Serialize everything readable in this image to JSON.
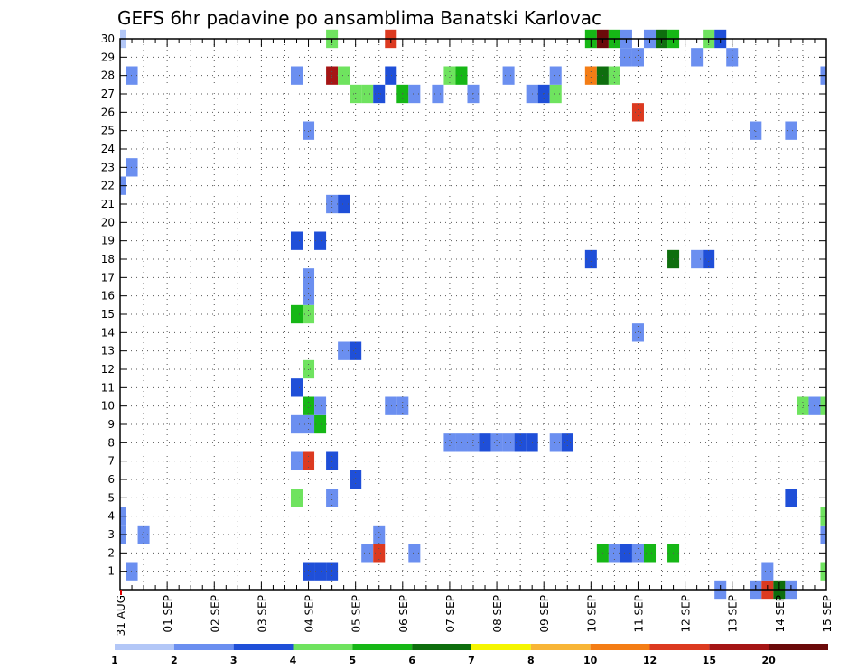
{
  "chart_data": {
    "type": "heatmap",
    "title": "GEFS 6hr padavine po ansamblima Banatski Karlovac",
    "xlabel": "",
    "ylabel": "",
    "x_tick_labels": [
      "31 AUG",
      "01 SEP",
      "02 SEP",
      "03 SEP",
      "04 SEP",
      "05 SEP",
      "06 SEP",
      "07 SEP",
      "08 SEP",
      "09 SEP",
      "10 SEP",
      "11 SEP",
      "12 SEP",
      "13 SEP",
      "14 SEP",
      "15 SEP"
    ],
    "x_range_steps": [
      0,
      60
    ],
    "steps_per_day": 4,
    "y_tick_labels": [
      "1",
      "2",
      "3",
      "4",
      "5",
      "6",
      "7",
      "8",
      "9",
      "10",
      "11",
      "12",
      "13",
      "14",
      "15",
      "16",
      "17",
      "18",
      "19",
      "20",
      "21",
      "22",
      "23",
      "24",
      "25",
      "26",
      "27",
      "28",
      "29",
      "30"
    ],
    "y_range": [
      0,
      30
    ],
    "grid": true,
    "legend_position": "bottom",
    "legend": {
      "thresholds": [
        "1",
        "2",
        "3",
        "4",
        "5",
        "6",
        "7",
        "8",
        "10",
        "12",
        "15",
        "20"
      ],
      "colors": [
        "#b3c7f7",
        "#6b8ff0",
        "#1f4fd8",
        "#6fe35f",
        "#16b716",
        "#0e6e0e",
        "#f5f500",
        "#f8b536",
        "#f47d15",
        "#dc3a20",
        "#a51515",
        "#6b0a0a"
      ]
    },
    "cells": [
      [
        0,
        3,
        1
      ],
      [
        0,
        4,
        1
      ],
      [
        0,
        22,
        1
      ],
      [
        0,
        30,
        0
      ],
      [
        1,
        1,
        1
      ],
      [
        1,
        23,
        1
      ],
      [
        1,
        28,
        1
      ],
      [
        2,
        3,
        1
      ],
      [
        15,
        5,
        3
      ],
      [
        15,
        7,
        1
      ],
      [
        15,
        9,
        1
      ],
      [
        15,
        11,
        2
      ],
      [
        15,
        15,
        4
      ],
      [
        15,
        19,
        2
      ],
      [
        15,
        28,
        1
      ],
      [
        16,
        1,
        2
      ],
      [
        16,
        7,
        9
      ],
      [
        16,
        9,
        1
      ],
      [
        16,
        10,
        4
      ],
      [
        16,
        12,
        3
      ],
      [
        16,
        15,
        3
      ],
      [
        16,
        16,
        1
      ],
      [
        16,
        17,
        1
      ],
      [
        16,
        25,
        1
      ],
      [
        17,
        1,
        2
      ],
      [
        17,
        9,
        4
      ],
      [
        17,
        10,
        1
      ],
      [
        17,
        19,
        2
      ],
      [
        18,
        1,
        2
      ],
      [
        18,
        5,
        1
      ],
      [
        18,
        7,
        2
      ],
      [
        18,
        21,
        1
      ],
      [
        18,
        28,
        10
      ],
      [
        18,
        30,
        3
      ],
      [
        19,
        13,
        1
      ],
      [
        19,
        21,
        2
      ],
      [
        19,
        28,
        3
      ],
      [
        20,
        6,
        2
      ],
      [
        20,
        13,
        2
      ],
      [
        20,
        27,
        3
      ],
      [
        21,
        2,
        1
      ],
      [
        21,
        27,
        3
      ],
      [
        22,
        2,
        9
      ],
      [
        22,
        3,
        1
      ],
      [
        22,
        27,
        2
      ],
      [
        23,
        10,
        1
      ],
      [
        23,
        28,
        2
      ],
      [
        23,
        30,
        9
      ],
      [
        24,
        10,
        1
      ],
      [
        24,
        27,
        4
      ],
      [
        25,
        2,
        1
      ],
      [
        25,
        27,
        1
      ],
      [
        27,
        27,
        1
      ],
      [
        28,
        8,
        1
      ],
      [
        28,
        28,
        3
      ],
      [
        29,
        8,
        1
      ],
      [
        29,
        28,
        4
      ],
      [
        30,
        8,
        1
      ],
      [
        30,
        27,
        1
      ],
      [
        31,
        8,
        2
      ],
      [
        32,
        8,
        1
      ],
      [
        33,
        8,
        1
      ],
      [
        33,
        28,
        1
      ],
      [
        34,
        8,
        2
      ],
      [
        35,
        8,
        2
      ],
      [
        35,
        27,
        1
      ],
      [
        36,
        27,
        2
      ],
      [
        37,
        8,
        1
      ],
      [
        37,
        27,
        3
      ],
      [
        37,
        28,
        1
      ],
      [
        38,
        8,
        2
      ],
      [
        40,
        18,
        2
      ],
      [
        40,
        28,
        8
      ],
      [
        40,
        30,
        4
      ],
      [
        41,
        2,
        4
      ],
      [
        41,
        28,
        5
      ],
      [
        41,
        30,
        11
      ],
      [
        42,
        2,
        1
      ],
      [
        42,
        28,
        3
      ],
      [
        42,
        30,
        4
      ],
      [
        43,
        2,
        2
      ],
      [
        43,
        29,
        1
      ],
      [
        43,
        30,
        1
      ],
      [
        44,
        2,
        1
      ],
      [
        44,
        14,
        1
      ],
      [
        44,
        26,
        9
      ],
      [
        44,
        29,
        1
      ],
      [
        45,
        2,
        4
      ],
      [
        45,
        30,
        1
      ],
      [
        46,
        30,
        5
      ],
      [
        47,
        2,
        4
      ],
      [
        47,
        18,
        5
      ],
      [
        47,
        30,
        4
      ],
      [
        49,
        18,
        1
      ],
      [
        49,
        29,
        1
      ],
      [
        50,
        18,
        2
      ],
      [
        50,
        30,
        3
      ],
      [
        51,
        0,
        1
      ],
      [
        51,
        30,
        2
      ],
      [
        52,
        29,
        1
      ],
      [
        54,
        0,
        1
      ],
      [
        54,
        25,
        1
      ],
      [
        55,
        0,
        9
      ],
      [
        55,
        1,
        1
      ],
      [
        56,
        0,
        5
      ],
      [
        57,
        0,
        1
      ],
      [
        57,
        5,
        2
      ],
      [
        57,
        25,
        1
      ],
      [
        58,
        10,
        3
      ],
      [
        59,
        10,
        1
      ],
      [
        60,
        1,
        3
      ],
      [
        60,
        3,
        1
      ],
      [
        60,
        4,
        3
      ],
      [
        60,
        10,
        3
      ],
      [
        60,
        28,
        1
      ]
    ]
  }
}
